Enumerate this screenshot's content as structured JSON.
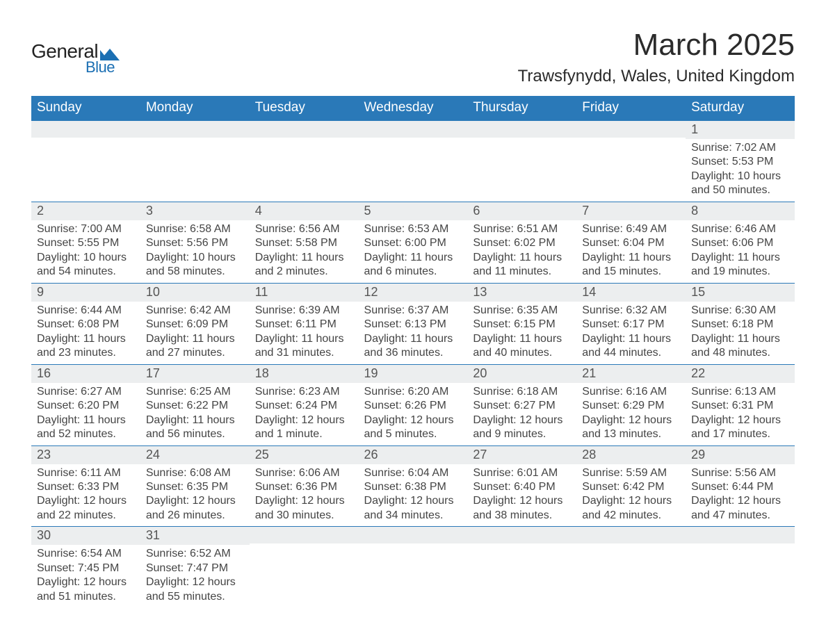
{
  "logo": {
    "text_top": "General",
    "text_bottom": "Blue",
    "shape_color": "#1b6fb3",
    "text_top_color": "#222222"
  },
  "title": "March 2025",
  "location": "Trawsfynydd, Wales, United Kingdom",
  "colors": {
    "header_bg": "#2a79b8",
    "header_text": "#ffffff",
    "daynum_bg": "#eceeef",
    "daynum_text": "#555555",
    "body_text": "#444444",
    "row_border": "#2a79b8",
    "page_bg": "#ffffff"
  },
  "fonts": {
    "title_size_pt": 33,
    "location_size_pt": 18,
    "header_size_pt": 14,
    "daynum_size_pt": 13,
    "body_size_pt": 12
  },
  "days_of_week": [
    "Sunday",
    "Monday",
    "Tuesday",
    "Wednesday",
    "Thursday",
    "Friday",
    "Saturday"
  ],
  "weeks": [
    [
      null,
      null,
      null,
      null,
      null,
      null,
      {
        "n": "1",
        "sunrise": "7:02 AM",
        "sunset": "5:53 PM",
        "daylight": "10 hours and 50 minutes."
      }
    ],
    [
      {
        "n": "2",
        "sunrise": "7:00 AM",
        "sunset": "5:55 PM",
        "daylight": "10 hours and 54 minutes."
      },
      {
        "n": "3",
        "sunrise": "6:58 AM",
        "sunset": "5:56 PM",
        "daylight": "10 hours and 58 minutes."
      },
      {
        "n": "4",
        "sunrise": "6:56 AM",
        "sunset": "5:58 PM",
        "daylight": "11 hours and 2 minutes."
      },
      {
        "n": "5",
        "sunrise": "6:53 AM",
        "sunset": "6:00 PM",
        "daylight": "11 hours and 6 minutes."
      },
      {
        "n": "6",
        "sunrise": "6:51 AM",
        "sunset": "6:02 PM",
        "daylight": "11 hours and 11 minutes."
      },
      {
        "n": "7",
        "sunrise": "6:49 AM",
        "sunset": "6:04 PM",
        "daylight": "11 hours and 15 minutes."
      },
      {
        "n": "8",
        "sunrise": "6:46 AM",
        "sunset": "6:06 PM",
        "daylight": "11 hours and 19 minutes."
      }
    ],
    [
      {
        "n": "9",
        "sunrise": "6:44 AM",
        "sunset": "6:08 PM",
        "daylight": "11 hours and 23 minutes."
      },
      {
        "n": "10",
        "sunrise": "6:42 AM",
        "sunset": "6:09 PM",
        "daylight": "11 hours and 27 minutes."
      },
      {
        "n": "11",
        "sunrise": "6:39 AM",
        "sunset": "6:11 PM",
        "daylight": "11 hours and 31 minutes."
      },
      {
        "n": "12",
        "sunrise": "6:37 AM",
        "sunset": "6:13 PM",
        "daylight": "11 hours and 36 minutes."
      },
      {
        "n": "13",
        "sunrise": "6:35 AM",
        "sunset": "6:15 PM",
        "daylight": "11 hours and 40 minutes."
      },
      {
        "n": "14",
        "sunrise": "6:32 AM",
        "sunset": "6:17 PM",
        "daylight": "11 hours and 44 minutes."
      },
      {
        "n": "15",
        "sunrise": "6:30 AM",
        "sunset": "6:18 PM",
        "daylight": "11 hours and 48 minutes."
      }
    ],
    [
      {
        "n": "16",
        "sunrise": "6:27 AM",
        "sunset": "6:20 PM",
        "daylight": "11 hours and 52 minutes."
      },
      {
        "n": "17",
        "sunrise": "6:25 AM",
        "sunset": "6:22 PM",
        "daylight": "11 hours and 56 minutes."
      },
      {
        "n": "18",
        "sunrise": "6:23 AM",
        "sunset": "6:24 PM",
        "daylight": "12 hours and 1 minute."
      },
      {
        "n": "19",
        "sunrise": "6:20 AM",
        "sunset": "6:26 PM",
        "daylight": "12 hours and 5 minutes."
      },
      {
        "n": "20",
        "sunrise": "6:18 AM",
        "sunset": "6:27 PM",
        "daylight": "12 hours and 9 minutes."
      },
      {
        "n": "21",
        "sunrise": "6:16 AM",
        "sunset": "6:29 PM",
        "daylight": "12 hours and 13 minutes."
      },
      {
        "n": "22",
        "sunrise": "6:13 AM",
        "sunset": "6:31 PM",
        "daylight": "12 hours and 17 minutes."
      }
    ],
    [
      {
        "n": "23",
        "sunrise": "6:11 AM",
        "sunset": "6:33 PM",
        "daylight": "12 hours and 22 minutes."
      },
      {
        "n": "24",
        "sunrise": "6:08 AM",
        "sunset": "6:35 PM",
        "daylight": "12 hours and 26 minutes."
      },
      {
        "n": "25",
        "sunrise": "6:06 AM",
        "sunset": "6:36 PM",
        "daylight": "12 hours and 30 minutes."
      },
      {
        "n": "26",
        "sunrise": "6:04 AM",
        "sunset": "6:38 PM",
        "daylight": "12 hours and 34 minutes."
      },
      {
        "n": "27",
        "sunrise": "6:01 AM",
        "sunset": "6:40 PM",
        "daylight": "12 hours and 38 minutes."
      },
      {
        "n": "28",
        "sunrise": "5:59 AM",
        "sunset": "6:42 PM",
        "daylight": "12 hours and 42 minutes."
      },
      {
        "n": "29",
        "sunrise": "5:56 AM",
        "sunset": "6:44 PM",
        "daylight": "12 hours and 47 minutes."
      }
    ],
    [
      {
        "n": "30",
        "sunrise": "6:54 AM",
        "sunset": "7:45 PM",
        "daylight": "12 hours and 51 minutes."
      },
      {
        "n": "31",
        "sunrise": "6:52 AM",
        "sunset": "7:47 PM",
        "daylight": "12 hours and 55 minutes."
      },
      null,
      null,
      null,
      null,
      null
    ]
  ],
  "labels": {
    "sunrise": "Sunrise:",
    "sunset": "Sunset:",
    "daylight": "Daylight:"
  }
}
